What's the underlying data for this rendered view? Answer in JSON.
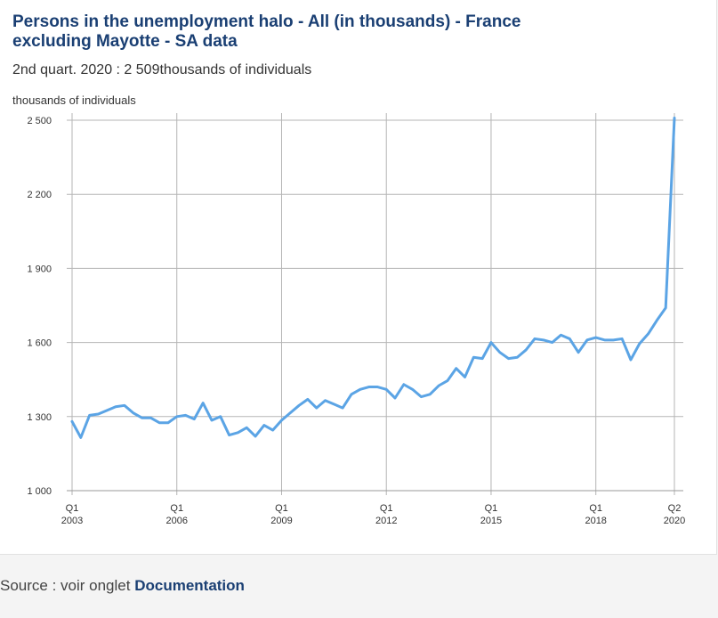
{
  "header": {
    "title": "Persons in the unemployment halo - All (in thousands) - France excluding Mayotte - SA data",
    "subtitle": "2nd quart. 2020 : 2 509thousands of individuals",
    "ylabel": "thousands of individuals"
  },
  "footer": {
    "source_prefix": "Source : voir onglet ",
    "source_link": "Documentation"
  },
  "colors": {
    "line": "#5ba4e5",
    "grid": "#b5b5b5",
    "axis": "#999999"
  },
  "chart_data": {
    "type": "line",
    "ylabel": "thousands of individuals",
    "ylim": [
      1000,
      2500
    ],
    "yticks": [
      1000,
      1300,
      1600,
      1900,
      2200,
      2500
    ],
    "ytick_labels": [
      "1 000",
      "1 300",
      "1 600",
      "1 900",
      "2 200",
      "2 500"
    ],
    "xlim": [
      2003.0,
      2020.25
    ],
    "xticks": [
      {
        "x": 2003.0,
        "line1": "Q1",
        "line2": "2003"
      },
      {
        "x": 2006.0,
        "line1": "Q1",
        "line2": "2006"
      },
      {
        "x": 2009.0,
        "line1": "Q1",
        "line2": "2009"
      },
      {
        "x": 2012.0,
        "line1": "Q1",
        "line2": "2012"
      },
      {
        "x": 2015.0,
        "line1": "Q1",
        "line2": "2015"
      },
      {
        "x": 2018.0,
        "line1": "Q1",
        "line2": "2018"
      },
      {
        "x": 2020.25,
        "line1": "Q2",
        "line2": "2020"
      }
    ],
    "grid": true,
    "series": [
      {
        "start_year": 2003,
        "start_quarter": 1,
        "values": [
          1280,
          1215,
          1305,
          1310,
          1325,
          1340,
          1345,
          1315,
          1295,
          1295,
          1275,
          1275,
          1300,
          1305,
          1290,
          1355,
          1285,
          1300,
          1225,
          1235,
          1255,
          1220,
          1265,
          1245,
          1285,
          1315,
          1345,
          1370,
          1335,
          1365,
          1350,
          1335,
          1390,
          1410,
          1420,
          1420,
          1410,
          1375,
          1430,
          1410,
          1380,
          1390,
          1425,
          1445,
          1495,
          1460,
          1540,
          1535,
          1600,
          1560,
          1535,
          1540,
          1570,
          1615,
          1610,
          1600,
          1630,
          1615,
          1560,
          1610,
          1620,
          1610,
          1610,
          1615,
          1530,
          1595,
          1635,
          1690,
          1740,
          2509
        ]
      }
    ]
  }
}
